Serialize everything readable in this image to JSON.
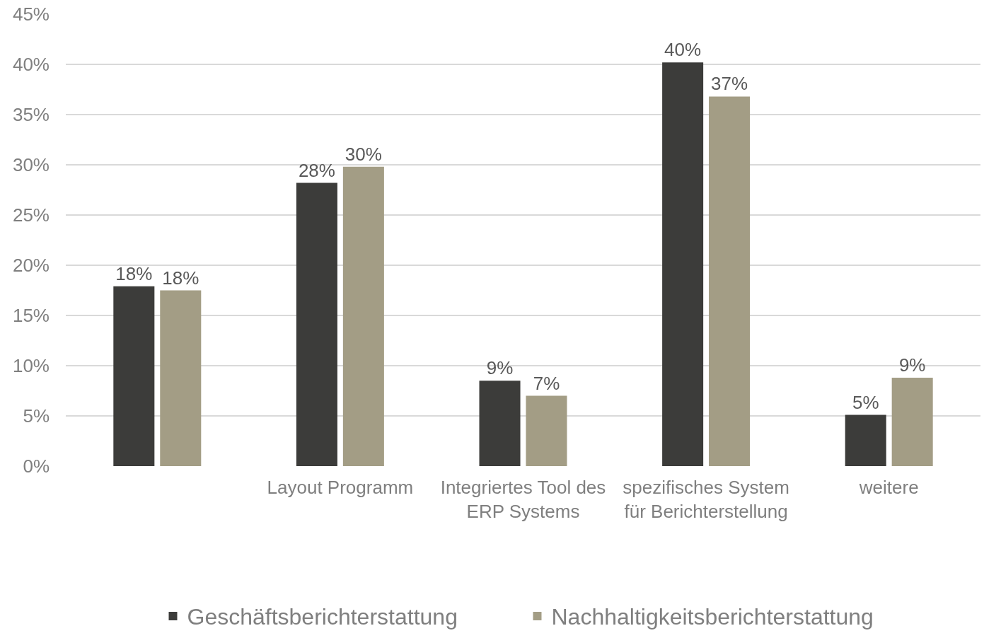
{
  "chart_data": {
    "type": "bar",
    "categories": [
      null,
      "Layout Programm",
      "Integriertes Tool des\nERP Systems",
      "spezifisches System\nfür Berichterstellung",
      "weitere"
    ],
    "series": [
      {
        "name": "Geschäftsberichterstattung",
        "color": "#3c3c3a",
        "values": [
          17.9,
          28.2,
          8.5,
          40.2,
          5.1
        ],
        "value_labels": [
          "18%",
          "28%",
          "9%",
          "40%",
          "5%"
        ]
      },
      {
        "name": "Nachhaltigkeitsberichterstattung",
        "color": "#a39d85",
        "values": [
          17.5,
          29.8,
          7.0,
          36.8,
          8.8
        ],
        "value_labels": [
          "18%",
          "30%",
          "7%",
          "37%",
          "9%"
        ]
      }
    ],
    "ylim": [
      0,
      45
    ],
    "yticks": [
      {
        "value": 0,
        "label": "0%"
      },
      {
        "value": 5,
        "label": "5%"
      },
      {
        "value": 10,
        "label": "10%"
      },
      {
        "value": 15,
        "label": "15%"
      },
      {
        "value": 20,
        "label": "20%"
      },
      {
        "value": 25,
        "label": "25%"
      },
      {
        "value": 30,
        "label": "30%"
      },
      {
        "value": 35,
        "label": "35%"
      },
      {
        "value": 40,
        "label": "40%"
      },
      {
        "value": 45,
        "label": "45%"
      }
    ],
    "grid": "y",
    "legend": "bottom"
  }
}
